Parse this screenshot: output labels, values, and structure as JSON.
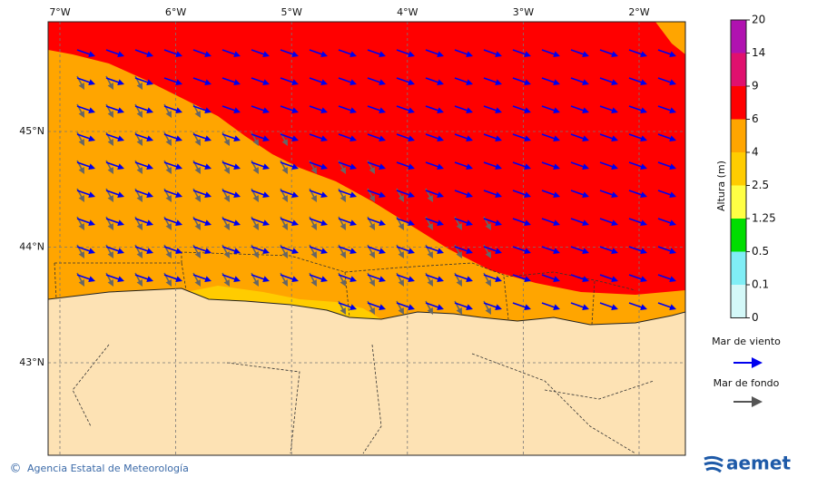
{
  "map": {
    "lon_labels": [
      "7°W",
      "6°W",
      "5°W",
      "4°W",
      "3°W",
      "2°W"
    ],
    "lat_labels": [
      "45°N",
      "44°N",
      "43°N"
    ]
  },
  "colorbar": {
    "title": "Altura (m)",
    "levels": [
      20,
      14,
      9,
      6,
      4,
      2.5,
      1.25,
      0.5,
      0.1,
      0
    ],
    "colors": [
      "#b012b0",
      "#e0106e",
      "#ff0000",
      "#ffa500",
      "#ffcc00",
      "#ffff44",
      "#00dd00",
      "#80eef6",
      "#d4f8f8"
    ]
  },
  "legend": {
    "wind_sea": "Mar de viento",
    "swell": "Mar de fondo"
  },
  "footer": {
    "copyright": "©",
    "agency": "Agencia Estatal de Meteorología",
    "logo": "aemet"
  }
}
